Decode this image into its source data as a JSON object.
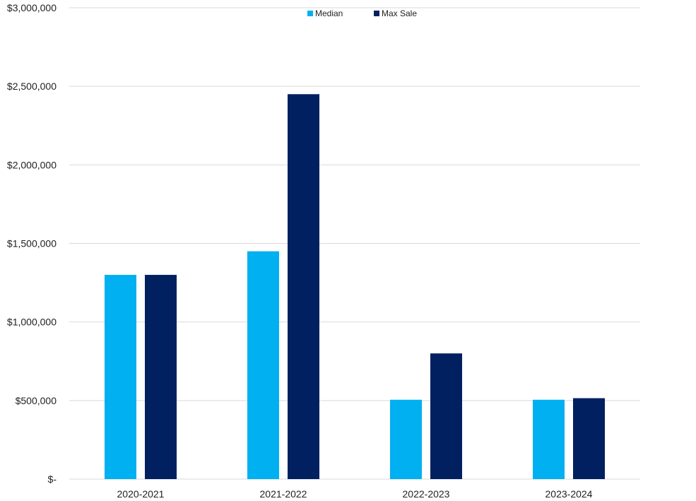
{
  "chart_data": {
    "type": "bar",
    "categories": [
      "2020-2021",
      "2021-2022",
      "2022-2023",
      "2023-2024"
    ],
    "series": [
      {
        "name": "Median",
        "color": "#00B0F0",
        "values": [
          1300000,
          1450000,
          505000,
          505000
        ]
      },
      {
        "name": "Max Sale",
        "color": "#002060",
        "values": [
          1300000,
          2450000,
          800000,
          515000
        ]
      }
    ],
    "yticks": [
      0,
      500000,
      1000000,
      1500000,
      2000000,
      2500000,
      3000000
    ],
    "ytick_labels": [
      "$-",
      "$500,000",
      "$1,000,000",
      "$1,500,000",
      "$2,000,000",
      "$2,500,000",
      "$3,000,000"
    ],
    "ylim": [
      0,
      3000000
    ],
    "grid": true,
    "legend_position": "top-center",
    "title": "",
    "xlabel": "",
    "ylabel": ""
  }
}
